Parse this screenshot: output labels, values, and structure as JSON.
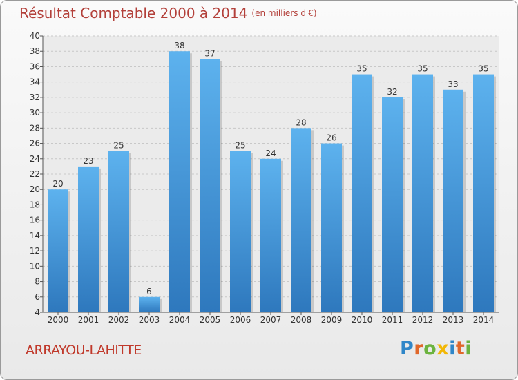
{
  "chart_data": {
    "type": "bar",
    "title": "Résultat Comptable 2000 à 2014",
    "subtitle": "(en milliers d'€)",
    "categories": [
      "2000",
      "2001",
      "2002",
      "2003",
      "2004",
      "2005",
      "2006",
      "2007",
      "2008",
      "2009",
      "2010",
      "2011",
      "2012",
      "2013",
      "2014"
    ],
    "values": [
      20,
      23,
      25,
      6,
      38,
      37,
      25,
      24,
      28,
      26,
      35,
      32,
      35,
      33,
      35
    ],
    "ylim": [
      4,
      40
    ],
    "yticks": [
      4,
      6,
      8,
      10,
      12,
      14,
      16,
      18,
      20,
      22,
      24,
      26,
      28,
      30,
      32,
      34,
      36,
      38,
      40
    ],
    "grid": true,
    "bar_color": "#4a9ee0",
    "commune": "ARRAYOU-LAHITTE"
  },
  "logo": {
    "letters": [
      {
        "ch": "P",
        "color": "#2f86c8"
      },
      {
        "ch": "r",
        "color": "#e0672a"
      },
      {
        "ch": "o",
        "color": "#6cb33f"
      },
      {
        "ch": "x",
        "color": "#f2b705"
      },
      {
        "ch": "i",
        "color": "#2f86c8"
      },
      {
        "ch": "t",
        "color": "#e0672a"
      },
      {
        "ch": "i",
        "color": "#6cb33f"
      }
    ]
  }
}
